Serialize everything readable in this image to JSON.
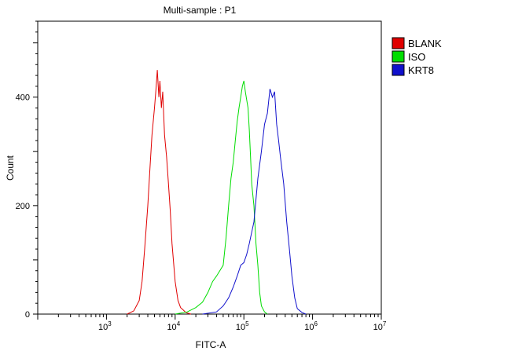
{
  "chart_data": {
    "type": "line",
    "title": "Multi-sample : P1",
    "xlabel": "FITC-A",
    "ylabel": "Count",
    "x_scale": "log",
    "xlim": [
      100,
      10000000
    ],
    "ylim": [
      0,
      540
    ],
    "y_ticks": [
      0,
      200,
      400
    ],
    "y_tick_labels": [
      "0",
      "200",
      "400"
    ],
    "x_ticks": [
      1000,
      10000,
      100000,
      1000000,
      10000000
    ],
    "x_tick_labels": [
      {
        "base": "10",
        "exp": "3"
      },
      {
        "base": "10",
        "exp": "4"
      },
      {
        "base": "10",
        "exp": "5"
      },
      {
        "base": "10",
        "exp": "6"
      },
      {
        "base": "10",
        "exp": "7"
      }
    ],
    "legend_position": "top-right",
    "series": [
      {
        "name": "BLANK",
        "color": "#e00000",
        "x": [
          2000,
          2500,
          3000,
          3300,
          3600,
          4000,
          4300,
          4600,
          5000,
          5300,
          5500,
          5800,
          6000,
          6300,
          6600,
          7000,
          7500,
          8000,
          8500,
          9000,
          10000,
          11000,
          12000,
          13000,
          14000,
          15000,
          17000
        ],
        "y": [
          0,
          6,
          25,
          60,
          120,
          200,
          270,
          330,
          380,
          420,
          450,
          400,
          430,
          380,
          410,
          330,
          290,
          240,
          190,
          130,
          60,
          25,
          12,
          8,
          4,
          2,
          0
        ]
      },
      {
        "name": "ISO",
        "color": "#00dd00",
        "x": [
          10000,
          15000,
          20000,
          25000,
          30000,
          35000,
          40000,
          50000,
          55000,
          60000,
          65000,
          70000,
          75000,
          80000,
          85000,
          90000,
          95000,
          100000,
          105000,
          110000,
          115000,
          120000,
          125000,
          130000,
          140000,
          150000,
          160000,
          170000,
          180000,
          200000,
          220000
        ],
        "y": [
          0,
          4,
          12,
          22,
          40,
          60,
          70,
          90,
          140,
          200,
          250,
          280,
          320,
          355,
          380,
          400,
          420,
          430,
          410,
          395,
          380,
          340,
          290,
          240,
          200,
          130,
          90,
          40,
          15,
          4,
          0
        ]
      },
      {
        "name": "KRT8",
        "color": "#1010cc",
        "x": [
          25000,
          40000,
          50000,
          60000,
          70000,
          80000,
          90000,
          100000,
          110000,
          120000,
          140000,
          160000,
          180000,
          200000,
          220000,
          240000,
          260000,
          280000,
          300000,
          320000,
          340000,
          380000,
          420000,
          460000,
          500000,
          550000,
          600000,
          700000,
          800000
        ],
        "y": [
          0,
          4,
          15,
          30,
          50,
          70,
          90,
          95,
          110,
          130,
          170,
          250,
          300,
          350,
          370,
          415,
          400,
          410,
          350,
          320,
          290,
          240,
          170,
          120,
          70,
          30,
          10,
          3,
          0
        ]
      }
    ]
  }
}
